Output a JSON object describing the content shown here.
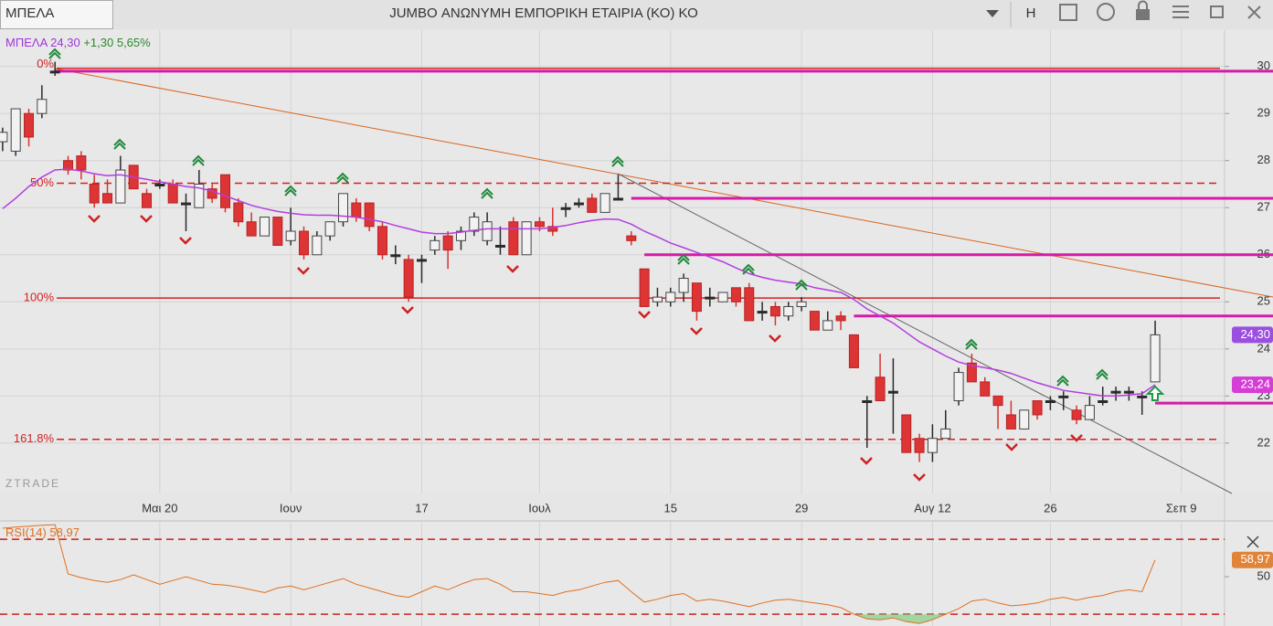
{
  "header": {
    "symbol": "ΜΠΕΛΑ",
    "title": "JUMBO ΑΝΩΝΥΜΗ ΕΜΠΟΡΙΚΗ ΕΤΑΙΡΙΑ (ΚΟ) ΚΟ",
    "button": "Η"
  },
  "quote": {
    "price": "24,30",
    "change": "+1,30 5,65%"
  },
  "watermark": "ZTRADE",
  "chart_data": {
    "type": "candlestick",
    "xlim": [
      -0.2,
      93.3
    ],
    "xticks": [
      {
        "value": 12,
        "label": "Μαι 20"
      },
      {
        "value": 22,
        "label": "Ιουν"
      },
      {
        "value": 32,
        "label": "17"
      },
      {
        "value": 41,
        "label": "Ιουλ"
      },
      {
        "value": 51,
        "label": "15"
      },
      {
        "value": 61,
        "label": "29"
      },
      {
        "value": 71,
        "label": "Αυγ 12"
      },
      {
        "value": 80,
        "label": "26"
      },
      {
        "value": 90,
        "label": "Σεπ 9"
      }
    ],
    "ylim": [
      20.93,
      30.77
    ],
    "yticks": [
      22,
      23,
      24,
      25,
      26,
      27,
      28,
      29,
      30
    ],
    "grid": true,
    "candles": [
      {
        "o": 28.4,
        "h": 28.7,
        "l": 28.2,
        "c": 28.6
      },
      {
        "o": 28.2,
        "h": 29.1,
        "l": 28.1,
        "c": 29.1
      },
      {
        "o": 29.0,
        "h": 29.1,
        "l": 28.3,
        "c": 28.5
      },
      {
        "o": 29.0,
        "h": 29.6,
        "l": 28.9,
        "c": 29.3
      },
      {
        "o": 29.9,
        "h": 30.1,
        "l": 29.8,
        "c": 29.9
      },
      {
        "o": 28.0,
        "h": 28.1,
        "l": 27.7,
        "c": 27.8
      },
      {
        "o": 28.1,
        "h": 28.2,
        "l": 27.6,
        "c": 27.8
      },
      {
        "o": 27.5,
        "h": 27.7,
        "l": 27.0,
        "c": 27.1
      },
      {
        "o": 27.3,
        "h": 27.6,
        "l": 27.1,
        "c": 27.1
      },
      {
        "o": 27.1,
        "h": 28.1,
        "l": 27.1,
        "c": 27.8
      },
      {
        "o": 27.9,
        "h": 27.9,
        "l": 27.4,
        "c": 27.4
      },
      {
        "o": 27.3,
        "h": 27.4,
        "l": 27.0,
        "c": 27.0
      },
      {
        "o": 27.5,
        "h": 27.6,
        "l": 27.4,
        "c": 27.5
      },
      {
        "o": 27.5,
        "h": 27.6,
        "l": 27.1,
        "c": 27.1
      },
      {
        "o": 27.1,
        "h": 27.3,
        "l": 26.5,
        "c": 27.1
      },
      {
        "o": 27.0,
        "h": 27.8,
        "l": 27.0,
        "c": 27.5
      },
      {
        "o": 27.4,
        "h": 27.5,
        "l": 27.1,
        "c": 27.2
      },
      {
        "o": 27.7,
        "h": 27.7,
        "l": 26.9,
        "c": 27.0
      },
      {
        "o": 27.1,
        "h": 27.2,
        "l": 26.6,
        "c": 26.7
      },
      {
        "o": 26.7,
        "h": 26.9,
        "l": 26.4,
        "c": 26.4
      },
      {
        "o": 26.4,
        "h": 26.8,
        "l": 26.4,
        "c": 26.8
      },
      {
        "o": 26.8,
        "h": 26.8,
        "l": 26.2,
        "c": 26.2
      },
      {
        "o": 26.3,
        "h": 27.0,
        "l": 26.2,
        "c": 26.5
      },
      {
        "o": 26.5,
        "h": 26.6,
        "l": 25.9,
        "c": 26.0
      },
      {
        "o": 26.0,
        "h": 26.5,
        "l": 26.0,
        "c": 26.4
      },
      {
        "o": 26.4,
        "h": 26.7,
        "l": 26.3,
        "c": 26.7
      },
      {
        "o": 26.7,
        "h": 27.3,
        "l": 26.6,
        "c": 27.3
      },
      {
        "o": 27.1,
        "h": 27.2,
        "l": 26.7,
        "c": 26.8
      },
      {
        "o": 27.1,
        "h": 27.1,
        "l": 26.5,
        "c": 26.6
      },
      {
        "o": 26.6,
        "h": 26.7,
        "l": 25.9,
        "c": 26.0
      },
      {
        "o": 26.0,
        "h": 26.2,
        "l": 25.8,
        "c": 26.0
      },
      {
        "o": 25.9,
        "h": 26.0,
        "l": 25.0,
        "c": 25.1
      },
      {
        "o": 25.9,
        "h": 26.0,
        "l": 25.4,
        "c": 25.9
      },
      {
        "o": 26.1,
        "h": 26.4,
        "l": 26.0,
        "c": 26.3
      },
      {
        "o": 26.4,
        "h": 26.5,
        "l": 25.7,
        "c": 26.1
      },
      {
        "o": 26.3,
        "h": 26.6,
        "l": 26.1,
        "c": 26.5
      },
      {
        "o": 26.5,
        "h": 26.9,
        "l": 26.4,
        "c": 26.8
      },
      {
        "o": 26.3,
        "h": 26.9,
        "l": 26.2,
        "c": 26.7
      },
      {
        "o": 26.2,
        "h": 26.6,
        "l": 26.0,
        "c": 26.2
      },
      {
        "o": 26.7,
        "h": 26.8,
        "l": 26.0,
        "c": 26.0
      },
      {
        "o": 26.0,
        "h": 26.7,
        "l": 26.0,
        "c": 26.7
      },
      {
        "o": 26.7,
        "h": 26.8,
        "l": 26.5,
        "c": 26.6
      },
      {
        "o": 26.6,
        "h": 27.0,
        "l": 26.4,
        "c": 26.5
      },
      {
        "o": 27.0,
        "h": 27.1,
        "l": 26.8,
        "c": 27.0
      },
      {
        "o": 27.1,
        "h": 27.2,
        "l": 27.0,
        "c": 27.1
      },
      {
        "o": 27.2,
        "h": 27.3,
        "l": 26.9,
        "c": 26.9
      },
      {
        "o": 26.9,
        "h": 27.3,
        "l": 26.9,
        "c": 27.3
      },
      {
        "o": 27.2,
        "h": 27.7,
        "l": 27.2,
        "c": 27.2
      },
      {
        "o": 26.4,
        "h": 26.5,
        "l": 26.2,
        "c": 26.3
      },
      {
        "o": 25.7,
        "h": 25.7,
        "l": 24.9,
        "c": 24.9
      },
      {
        "o": 25.0,
        "h": 25.3,
        "l": 24.9,
        "c": 25.1
      },
      {
        "o": 25.0,
        "h": 25.3,
        "l": 24.9,
        "c": 25.2
      },
      {
        "o": 25.2,
        "h": 25.6,
        "l": 25.0,
        "c": 25.5
      },
      {
        "o": 25.4,
        "h": 25.4,
        "l": 24.6,
        "c": 24.8
      },
      {
        "o": 25.1,
        "h": 25.3,
        "l": 24.9,
        "c": 25.1
      },
      {
        "o": 25.0,
        "h": 25.2,
        "l": 25.0,
        "c": 25.2
      },
      {
        "o": 25.3,
        "h": 25.3,
        "l": 24.9,
        "c": 25.0
      },
      {
        "o": 25.3,
        "h": 25.4,
        "l": 24.6,
        "c": 24.6
      },
      {
        "o": 24.8,
        "h": 25.0,
        "l": 24.6,
        "c": 24.8
      },
      {
        "o": 24.9,
        "h": 25.0,
        "l": 24.5,
        "c": 24.7
      },
      {
        "o": 24.7,
        "h": 25.0,
        "l": 24.6,
        "c": 24.9
      },
      {
        "o": 24.9,
        "h": 25.1,
        "l": 24.8,
        "c": 25.0
      },
      {
        "o": 24.8,
        "h": 24.8,
        "l": 24.4,
        "c": 24.4
      },
      {
        "o": 24.4,
        "h": 24.8,
        "l": 24.4,
        "c": 24.6
      },
      {
        "o": 24.7,
        "h": 24.8,
        "l": 24.4,
        "c": 24.6
      },
      {
        "o": 24.3,
        "h": 24.3,
        "l": 23.6,
        "c": 23.6
      },
      {
        "o": 22.9,
        "h": 23.0,
        "l": 21.9,
        "c": 22.9
      },
      {
        "o": 23.4,
        "h": 23.9,
        "l": 22.9,
        "c": 22.9
      },
      {
        "o": 23.1,
        "h": 23.8,
        "l": 22.2,
        "c": 23.1
      },
      {
        "o": 22.6,
        "h": 22.6,
        "l": 21.8,
        "c": 21.8
      },
      {
        "o": 22.1,
        "h": 22.2,
        "l": 21.6,
        "c": 21.8
      },
      {
        "o": 21.8,
        "h": 22.4,
        "l": 21.6,
        "c": 22.1
      },
      {
        "o": 22.1,
        "h": 22.7,
        "l": 22.1,
        "c": 22.3
      },
      {
        "o": 22.9,
        "h": 23.6,
        "l": 22.8,
        "c": 23.5
      },
      {
        "o": 23.7,
        "h": 23.9,
        "l": 23.3,
        "c": 23.3
      },
      {
        "o": 23.3,
        "h": 23.4,
        "l": 23.0,
        "c": 23.0
      },
      {
        "o": 23.0,
        "h": 23.0,
        "l": 22.3,
        "c": 22.8
      },
      {
        "o": 22.6,
        "h": 22.9,
        "l": 22.3,
        "c": 22.3
      },
      {
        "o": 22.3,
        "h": 22.7,
        "l": 22.3,
        "c": 22.7
      },
      {
        "o": 22.9,
        "h": 22.9,
        "l": 22.5,
        "c": 22.6
      },
      {
        "o": 22.9,
        "h": 23.0,
        "l": 22.7,
        "c": 22.9
      },
      {
        "o": 23.0,
        "h": 23.1,
        "l": 22.7,
        "c": 23.0
      },
      {
        "o": 22.7,
        "h": 22.8,
        "l": 22.4,
        "c": 22.5
      },
      {
        "o": 22.5,
        "h": 23.0,
        "l": 22.5,
        "c": 22.8
      },
      {
        "o": 22.9,
        "h": 23.2,
        "l": 22.8,
        "c": 22.9
      },
      {
        "o": 23.1,
        "h": 23.2,
        "l": 22.9,
        "c": 23.1
      },
      {
        "o": 23.1,
        "h": 23.2,
        "l": 22.9,
        "c": 23.1
      },
      {
        "o": 23.0,
        "h": 23.1,
        "l": 22.6,
        "c": 23.0
      },
      {
        "o": 23.3,
        "h": 24.6,
        "l": 23.3,
        "c": 24.3
      }
    ],
    "price_tag_label": "24,30",
    "ma": {
      "color": "#b43de0",
      "last_label": "23,24",
      "values": [
        26.98,
        27.2,
        27.45,
        27.65,
        27.8,
        27.82,
        27.78,
        27.72,
        27.68,
        27.7,
        27.65,
        27.6,
        27.55,
        27.5,
        27.45,
        27.42,
        27.35,
        27.25,
        27.15,
        27.05,
        26.98,
        26.92,
        26.88,
        26.85,
        26.84,
        26.84,
        26.82,
        26.8,
        26.75,
        26.7,
        26.62,
        26.55,
        26.48,
        26.45,
        26.45,
        26.48,
        26.52,
        26.55,
        26.55,
        26.55,
        26.55,
        26.55,
        26.58,
        26.62,
        26.68,
        26.73,
        26.76,
        26.75,
        26.65,
        26.5,
        26.38,
        26.25,
        26.15,
        26.05,
        25.95,
        25.85,
        25.72,
        25.6,
        25.52,
        25.46,
        25.42,
        25.38,
        25.3,
        25.25,
        25.2,
        25.05,
        24.85,
        24.7,
        24.55,
        24.35,
        24.15,
        24.0,
        23.85,
        23.72,
        23.65,
        23.6,
        23.55,
        23.48,
        23.38,
        23.28,
        23.2,
        23.12,
        23.08,
        23.04,
        23.0,
        23.0,
        23.02,
        23.05,
        23.24
      ]
    },
    "fib_levels": [
      {
        "label": "0%",
        "value": 29.96,
        "dashed": false
      },
      {
        "label": "50%",
        "value": 27.52,
        "dashed": true
      },
      {
        "label": "100%",
        "value": 25.08,
        "dashed": false
      },
      {
        "label": "161.8%",
        "value": 22.08,
        "dashed": true
      }
    ],
    "levels": [
      {
        "value": 29.9,
        "start": 4
      },
      {
        "value": 27.2,
        "start": 48
      },
      {
        "value": 26.0,
        "start": 49
      },
      {
        "value": 24.7,
        "start": 65
      },
      {
        "value": 22.85,
        "start": 88
      }
    ],
    "level_color": "#d61aa8",
    "fib_color": "#d42020",
    "rsi": {
      "name": "RSI(14)",
      "last_label": "58,97",
      "color": "#e07020",
      "ylim": [
        23.7,
        79.8
      ],
      "yticks": [
        50
      ],
      "bands": [
        30,
        70
      ],
      "values": [
        75.9,
        76.5,
        77,
        77.5,
        77.8,
        51.5,
        49.5,
        48,
        47,
        48.5,
        51,
        48.5,
        46,
        48,
        50,
        48,
        46,
        45.5,
        44.5,
        43,
        41.5,
        44,
        45,
        43,
        45,
        47,
        49,
        46,
        44,
        42,
        40,
        39,
        42,
        45,
        43,
        46,
        48.5,
        49,
        46,
        42,
        42,
        41,
        40,
        42,
        43,
        45,
        47,
        48,
        42,
        36.5,
        38,
        40,
        41,
        37,
        38,
        37,
        35.5,
        34,
        36,
        37.5,
        38,
        37,
        36,
        35,
        33.5,
        30,
        27.5,
        27,
        28,
        26,
        25,
        27,
        30,
        33,
        37,
        38,
        36,
        34.5,
        35,
        36,
        38,
        39,
        37.5,
        39,
        40,
        42,
        43,
        42,
        58.97
      ]
    }
  }
}
